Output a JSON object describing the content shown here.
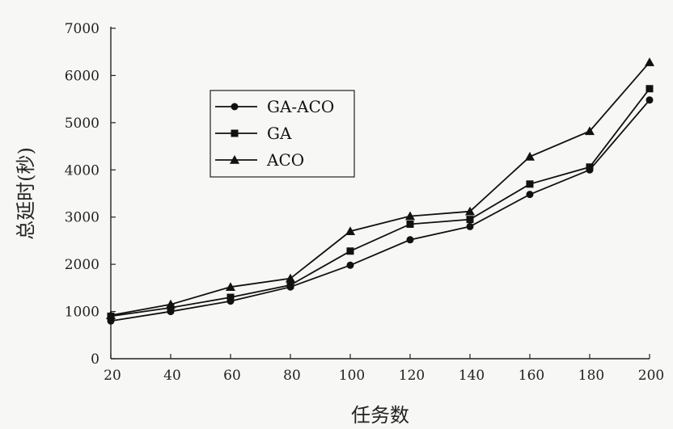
{
  "chart_data": {
    "type": "line",
    "xlabel": "任务数",
    "ylabel": "总延时(秒)",
    "x": [
      20,
      40,
      60,
      80,
      100,
      120,
      140,
      160,
      180,
      200
    ],
    "xticks": [
      "20",
      "40",
      "60",
      "80",
      "100",
      "120",
      "140",
      "160",
      "180",
      "200"
    ],
    "yticks": [
      "0",
      "1000",
      "2000",
      "3000",
      "4000",
      "5000",
      "6000",
      "7000"
    ],
    "xlim": [
      20,
      200
    ],
    "ylim": [
      0,
      7000
    ],
    "grid": false,
    "legend_position": "upper-left",
    "series": [
      {
        "name": "GA-ACO",
        "marker": "circle",
        "values": [
          800,
          1000,
          1220,
          1520,
          1980,
          2520,
          2800,
          3480,
          4000,
          5480
        ]
      },
      {
        "name": "GA",
        "marker": "square",
        "values": [
          900,
          1080,
          1300,
          1560,
          2280,
          2850,
          2950,
          3700,
          4060,
          5720
        ]
      },
      {
        "name": "ACO",
        "marker": "triangle",
        "values": [
          920,
          1150,
          1520,
          1700,
          2700,
          3020,
          3120,
          4280,
          4820,
          6280
        ]
      }
    ],
    "colors": {
      "line": "#111111",
      "axis": "#222222",
      "background": "#f7f7f5"
    }
  }
}
